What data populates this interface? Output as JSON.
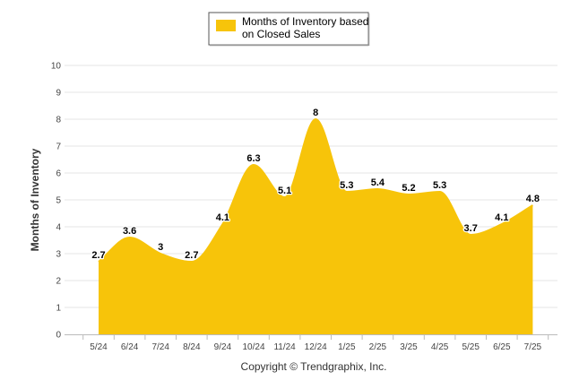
{
  "chart_data": {
    "type": "area",
    "categories": [
      "5/24",
      "6/24",
      "7/24",
      "8/24",
      "9/24",
      "10/24",
      "11/24",
      "12/24",
      "1/25",
      "2/25",
      "3/25",
      "4/25",
      "5/25",
      "6/25",
      "7/25"
    ],
    "series": [
      {
        "name": "Months of Inventory based on Closed Sales",
        "values": [
          2.7,
          3.6,
          3,
          2.7,
          4.1,
          6.3,
          5.1,
          8,
          5.3,
          5.4,
          5.2,
          5.3,
          3.7,
          4.1,
          4.8
        ]
      }
    ],
    "data_labels": [
      "2.7",
      "3.6",
      "3",
      "2.7",
      "4.1",
      "6.3",
      "5.1",
      "8",
      "5.3",
      "5.4",
      "5.2",
      "5.3",
      "3.7",
      "4.1",
      "4.8"
    ],
    "yticks": [
      "0",
      "1",
      "2",
      "3",
      "4",
      "5",
      "6",
      "7",
      "8",
      "9",
      "10"
    ],
    "ylabel": "Months of Inventory",
    "ylim": [
      0,
      10
    ],
    "grid": true,
    "legend": {
      "position": "top-center",
      "line1": "Months of Inventory based",
      "line2": "on Closed Sales"
    },
    "footer": "Copyright © Trendgraphix, Inc.",
    "colors": {
      "area": "#F7C40A",
      "grid": "#E6E6E6",
      "axis": "#BBBBBB"
    }
  }
}
